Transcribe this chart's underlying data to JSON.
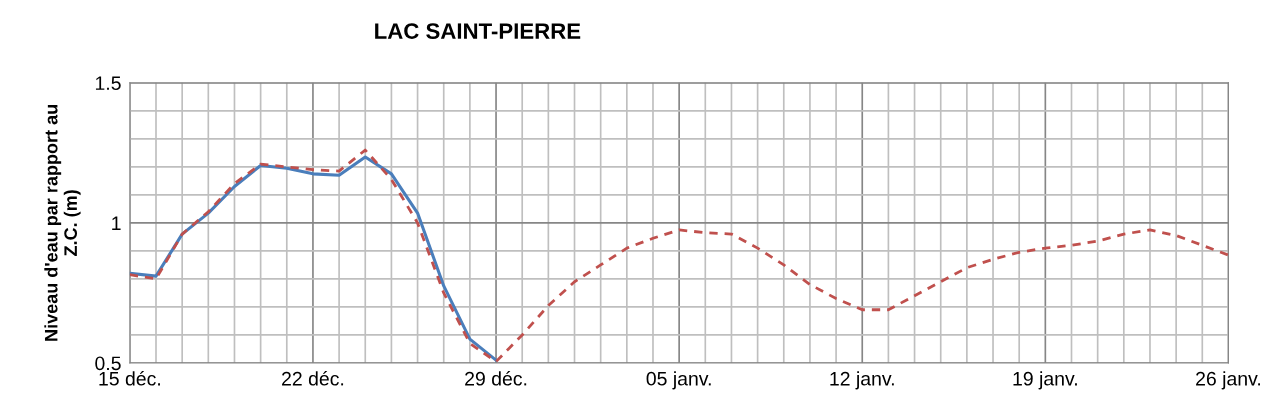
{
  "chart_data": {
    "type": "line",
    "title": "LAC SAINT-PIERRE",
    "ylabel": "Niveau d'eau par rapport au Z.C. (m)",
    "categories": [
      "15 déc.",
      null,
      null,
      null,
      null,
      null,
      null,
      "22 déc.",
      null,
      null,
      null,
      null,
      null,
      null,
      "29 déc.",
      null,
      null,
      null,
      null,
      null,
      null,
      "05 janv.",
      null,
      null,
      null,
      null,
      null,
      null,
      "12 janv.",
      null,
      null,
      null,
      null,
      null,
      null,
      "19 janv.",
      null,
      null,
      null,
      null,
      null,
      null,
      "26 janv."
    ],
    "series": [
      {
        "color": "#c0504d",
        "line_style": "dashed",
        "values": [
          0.815,
          0.8,
          0.96,
          1.04,
          1.14,
          1.21,
          1.2,
          1.19,
          1.185,
          1.26,
          1.155,
          1.0,
          0.75,
          0.57,
          0.505,
          0.6,
          0.705,
          0.79,
          0.85,
          0.91,
          0.945,
          0.975,
          0.965,
          0.96,
          0.91,
          0.85,
          0.78,
          0.73,
          0.69,
          0.69,
          0.74,
          0.79,
          0.84,
          0.87,
          0.895,
          0.91,
          0.92,
          0.935,
          0.96,
          0.975,
          0.955,
          0.92,
          0.885
        ]
      },
      {
        "color": "#4a7ebb",
        "line_style": "solid",
        "values": [
          0.82,
          0.81,
          0.96,
          1.035,
          1.13,
          1.205,
          1.195,
          1.175,
          1.17,
          1.235,
          1.175,
          1.035,
          0.775,
          0.585,
          0.51,
          null,
          null,
          null,
          null,
          null,
          null,
          null,
          null,
          null,
          null,
          null,
          null,
          null,
          null,
          null,
          null,
          null,
          null,
          null,
          null,
          null,
          null,
          null,
          null,
          null,
          null,
          null,
          null
        ]
      }
    ],
    "ylim": [
      0.5,
      1.5
    ],
    "yticks": [
      0.5,
      {
        "value": 0.6,
        "label": null
      },
      {
        "value": 0.7,
        "label": null
      },
      {
        "value": 0.8,
        "label": null
      },
      {
        "value": 0.9,
        "label": null
      },
      1,
      {
        "value": 1.1,
        "label": null
      },
      {
        "value": 1.2,
        "label": null
      },
      {
        "value": 1.3,
        "label": null
      },
      {
        "value": 1.4,
        "label": null
      },
      1.5
    ],
    "grid": true
  }
}
